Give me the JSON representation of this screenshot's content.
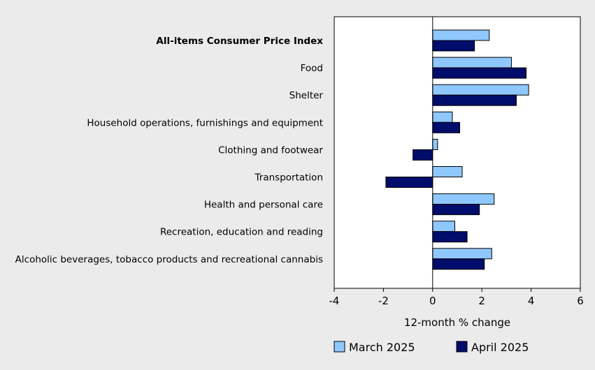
{
  "chart_data": {
    "type": "bar",
    "orientation": "horizontal",
    "categories": [
      "All-items Consumer Price Index",
      "Food",
      "Shelter",
      "Household operations, furnishings and equipment",
      "Clothing and footwear",
      "Transportation",
      "Health and personal care",
      "Recreation, education and reading",
      "Alcoholic beverages, tobacco products and recreational cannabis"
    ],
    "bold_categories": [
      0
    ],
    "series": [
      {
        "name": "March 2025",
        "color": "#8fc8ff",
        "values": [
          2.3,
          3.2,
          3.9,
          0.8,
          0.2,
          1.2,
          2.5,
          0.9,
          2.4
        ]
      },
      {
        "name": "April 2025",
        "color": "#000d6b",
        "values": [
          1.7,
          3.8,
          3.4,
          1.1,
          -0.8,
          -1.9,
          1.9,
          1.4,
          2.1
        ]
      }
    ],
    "xlim": [
      -4,
      6
    ],
    "xticks": [
      -4,
      -2,
      0,
      2,
      4,
      6
    ],
    "xlabel": "12-month % change",
    "legend_position": "bottom"
  }
}
